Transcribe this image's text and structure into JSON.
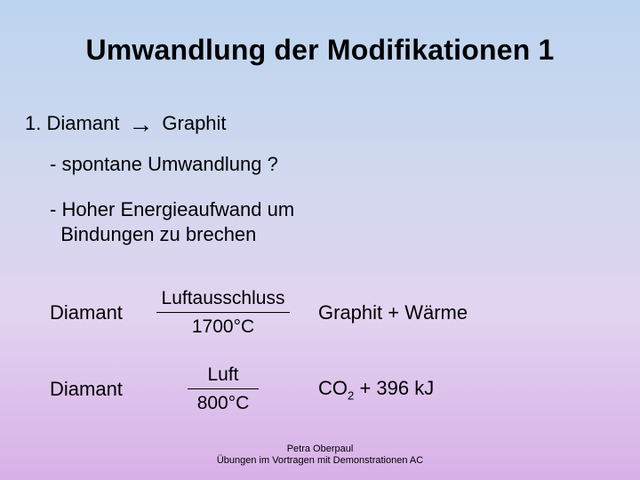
{
  "title": "Umwandlung der Modifikationen 1",
  "line1": {
    "left": "1. Diamant",
    "arrow": "→",
    "right": "Graphit"
  },
  "bullet1": "- spontane Umwandlung ?",
  "bullet2a": "- Hoher Energieaufwand um",
  "bullet2b": "Bindungen zu brechen",
  "reaction1": {
    "reactant": "Diamant",
    "condition_top": "Luftausschluss",
    "condition_bottom": "1700°C",
    "product": "Graphit + Wärme"
  },
  "reaction2": {
    "reactant": "Diamant",
    "condition_top": "Luft",
    "condition_bottom": "800°C",
    "product_pre": "CO",
    "product_sub": "2",
    "product_post": " + 396 kJ"
  },
  "footer1": "Petra Oberpaul",
  "footer2": "Übungen im Vortragen mit Demonstrationen AC"
}
